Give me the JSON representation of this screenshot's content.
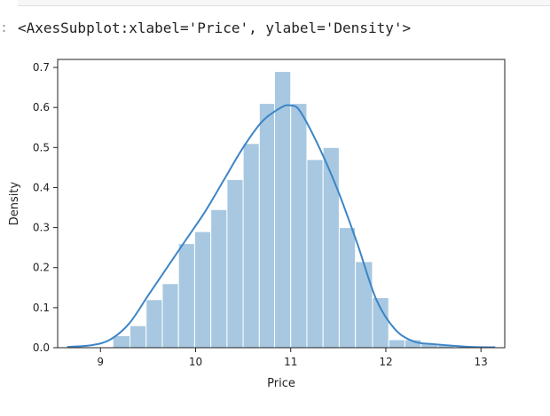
{
  "cell": {
    "prompt": ":",
    "output_text": "<AxesSubplot:xlabel='Price', ylabel='Density'>"
  },
  "colors": {
    "bar_fill": "#a7c8e0",
    "kde_line": "#3d85c6",
    "axis": "#222222"
  },
  "chart_data": {
    "type": "bar",
    "title": "",
    "xlabel": "Price",
    "ylabel": "Density",
    "xlim": [
      8.55,
      13.25
    ],
    "ylim": [
      0,
      0.72
    ],
    "x_ticks": [
      9,
      10,
      11,
      12,
      13
    ],
    "y_ticks": [
      0.0,
      0.1,
      0.2,
      0.3,
      0.4,
      0.5,
      0.6,
      0.7
    ],
    "y_tick_labels": [
      "0.0",
      "0.1",
      "0.2",
      "0.3",
      "0.4",
      "0.5",
      "0.6",
      "0.7"
    ],
    "histogram": {
      "bin_edges": [
        9.13,
        9.31,
        9.48,
        9.65,
        9.82,
        9.99,
        10.16,
        10.33,
        10.5,
        10.67,
        10.83,
        11.0,
        11.17,
        11.34,
        11.51,
        11.68,
        11.86,
        12.03,
        12.2,
        12.37,
        12.55,
        12.71
      ],
      "densities": [
        0.03,
        0.055,
        0.12,
        0.16,
        0.26,
        0.29,
        0.345,
        0.42,
        0.51,
        0.61,
        0.69,
        0.61,
        0.47,
        0.5,
        0.3,
        0.215,
        0.125,
        0.02,
        0.02,
        0.01,
        0.007
      ]
    },
    "kde": {
      "x": [
        8.65,
        8.9,
        9.1,
        9.3,
        9.5,
        9.7,
        9.9,
        10.1,
        10.3,
        10.5,
        10.7,
        10.9,
        11.0,
        11.1,
        11.3,
        11.5,
        11.7,
        11.9,
        12.1,
        12.3,
        12.5,
        12.7,
        12.9,
        13.15
      ],
      "y": [
        0.002,
        0.006,
        0.02,
        0.06,
        0.13,
        0.2,
        0.27,
        0.34,
        0.42,
        0.5,
        0.565,
        0.6,
        0.605,
        0.59,
        0.5,
        0.39,
        0.26,
        0.12,
        0.045,
        0.015,
        0.009,
        0.005,
        0.002,
        0.001
      ]
    }
  }
}
